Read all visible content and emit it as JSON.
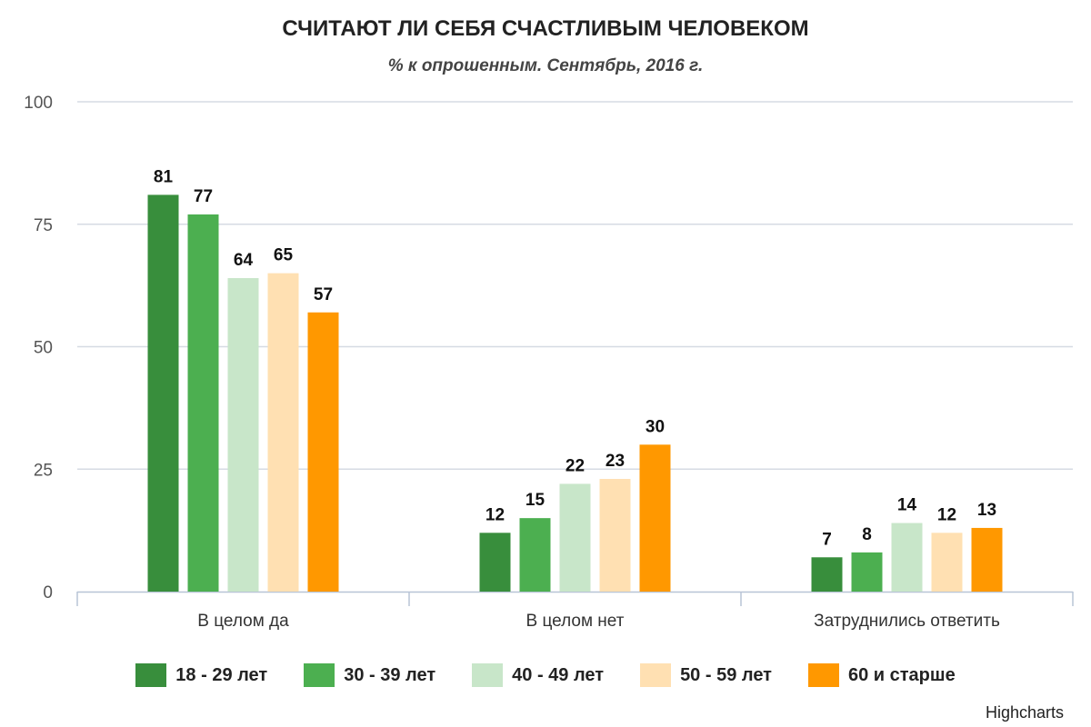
{
  "chart_data": {
    "type": "bar",
    "title": "СЧИТАЮТ ЛИ СЕБЯ СЧАСТЛИВЫМ ЧЕЛОВЕКОМ",
    "subtitle": "% к опрошенным. Сентябрь, 2016 г.",
    "xlabel": "",
    "ylabel": "",
    "ylim": [
      0,
      100
    ],
    "yticks": [
      0,
      25,
      50,
      75,
      100
    ],
    "grid": true,
    "legend_position": "bottom",
    "categories": [
      "В целом да",
      "В целом нет",
      "Затруднились ответить"
    ],
    "series": [
      {
        "name": "18 - 29 лет",
        "color": "#388e3c",
        "values": [
          81,
          12,
          7
        ]
      },
      {
        "name": "30 - 39 лет",
        "color": "#4caf50",
        "values": [
          77,
          15,
          8
        ]
      },
      {
        "name": "40 - 49 лет",
        "color": "#c8e6c9",
        "values": [
          64,
          22,
          14
        ]
      },
      {
        "name": "50 - 59 лет",
        "color": "#ffe0b2",
        "values": [
          65,
          23,
          12
        ]
      },
      {
        "name": "60 и старше",
        "color": "#ff9800",
        "values": [
          57,
          30,
          13
        ]
      }
    ]
  },
  "credit": "Highcharts"
}
